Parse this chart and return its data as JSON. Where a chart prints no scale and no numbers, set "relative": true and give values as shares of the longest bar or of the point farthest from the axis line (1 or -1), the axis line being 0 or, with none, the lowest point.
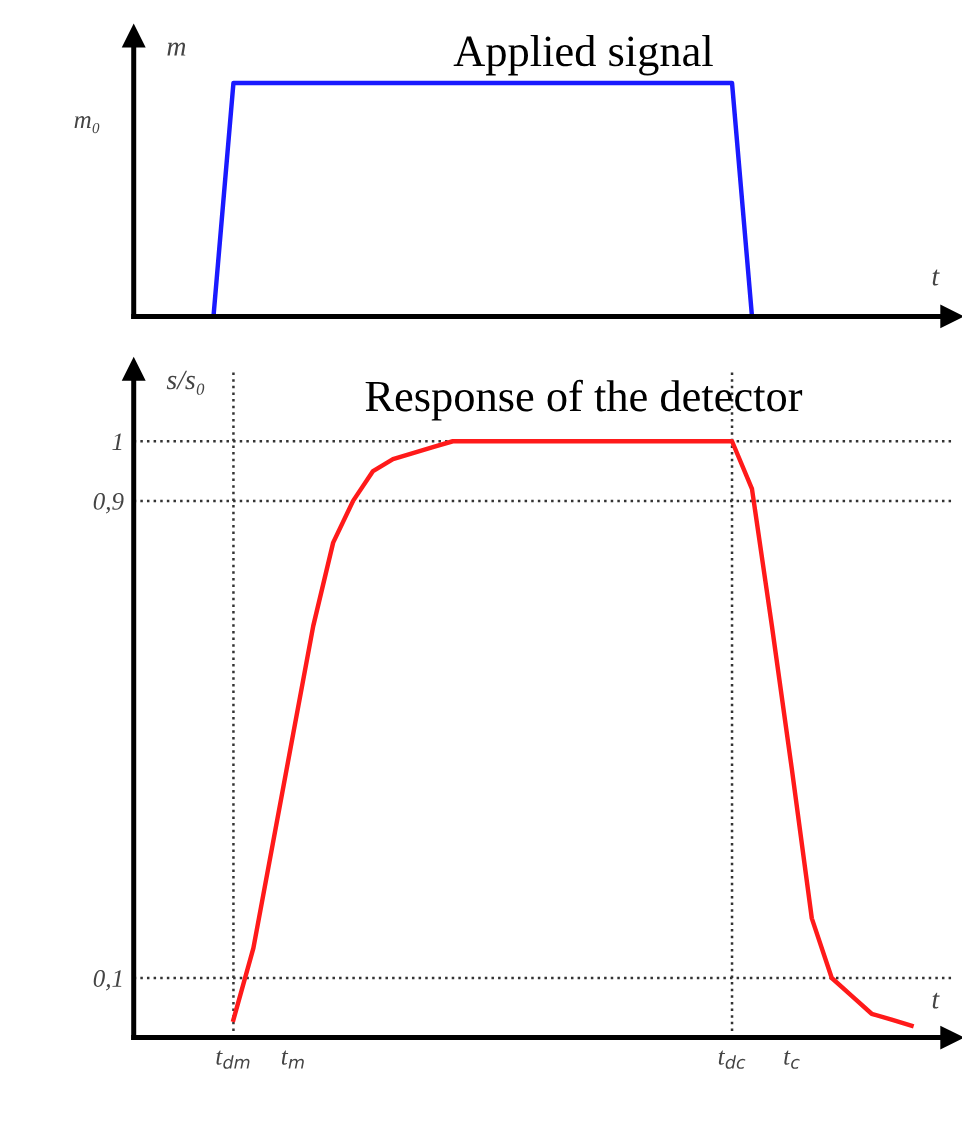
{
  "chart_data": [
    {
      "type": "line",
      "title": "Applied signal",
      "xlabel": "t",
      "ylabel": "m",
      "relative": true,
      "annotations": [
        "m₀"
      ],
      "categories": [
        null,
        null,
        null,
        null,
        null,
        null,
        null,
        null,
        null,
        null,
        null,
        null,
        null,
        null,
        null,
        null,
        null,
        null,
        null,
        null,
        null,
        null,
        null,
        null,
        null,
        null,
        null,
        null,
        null,
        null,
        null,
        null,
        null,
        null,
        null,
        null,
        null,
        null,
        null,
        null,
        null,
        null
      ],
      "series": [
        {
          "color": "#1a1aff",
          "values": [
            null,
            null,
            null,
            null,
            0,
            1,
            1,
            1,
            1,
            1,
            1,
            1,
            1,
            1,
            1,
            1,
            1,
            1,
            1,
            1,
            1,
            1,
            1,
            1,
            1,
            1,
            1,
            1,
            1,
            1,
            1,
            0,
            null,
            null,
            null,
            null,
            null,
            null,
            null,
            null,
            null,
            null
          ]
        }
      ]
    },
    {
      "type": "line",
      "title": "Response of the detector",
      "xlabel": "t",
      "ylabel": "s/s₀",
      "ylim": [
        0,
        1.12
      ],
      "yticks": [
        {
          "value": 0.1,
          "label": "0,1"
        },
        {
          "value": 0.9,
          "label": "0,9"
        },
        {
          "value": 1,
          "label": "1"
        }
      ],
      "categories": [
        null,
        null,
        null,
        null,
        null,
        "t$_{dm}$",
        null,
        null,
        "t$_{m}$",
        null,
        null,
        null,
        null,
        null,
        null,
        null,
        null,
        null,
        null,
        null,
        null,
        null,
        null,
        null,
        null,
        null,
        null,
        null,
        null,
        null,
        "t$_{dc}$",
        null,
        null,
        "t$_{c}$",
        null,
        null,
        null,
        null,
        null,
        null,
        null,
        null
      ],
      "ref_lines": [
        {
          "axis": "y",
          "value": 0.1,
          "line_style": "dotted",
          "color": "#333333"
        },
        {
          "axis": "y",
          "value": 0.9,
          "line_style": "dotted",
          "color": "#333333"
        },
        {
          "axis": "y",
          "value": 1,
          "line_style": "dotted",
          "color": "#333333"
        },
        {
          "axis": "x",
          "value": "t$_{dm}$",
          "line_style": "dotted",
          "color": "#333333"
        },
        {
          "axis": "x",
          "value": "t$_{dc}$",
          "line_style": "dotted",
          "color": "#333333"
        }
      ],
      "series": [
        {
          "color": "#ff1a1a",
          "values": [
            null,
            null,
            null,
            null,
            null,
            0.03,
            0.15,
            0.33,
            0.51,
            0.69,
            0.83,
            0.9,
            0.95,
            0.97,
            0.98,
            0.99,
            1,
            1,
            1,
            1,
            1,
            1,
            1,
            1,
            1,
            1,
            1,
            1,
            1,
            1,
            1,
            0.92,
            0.69,
            0.45,
            0.2,
            0.1,
            0.07,
            0.04,
            0.03,
            0.02,
            null,
            null
          ]
        }
      ]
    }
  ]
}
